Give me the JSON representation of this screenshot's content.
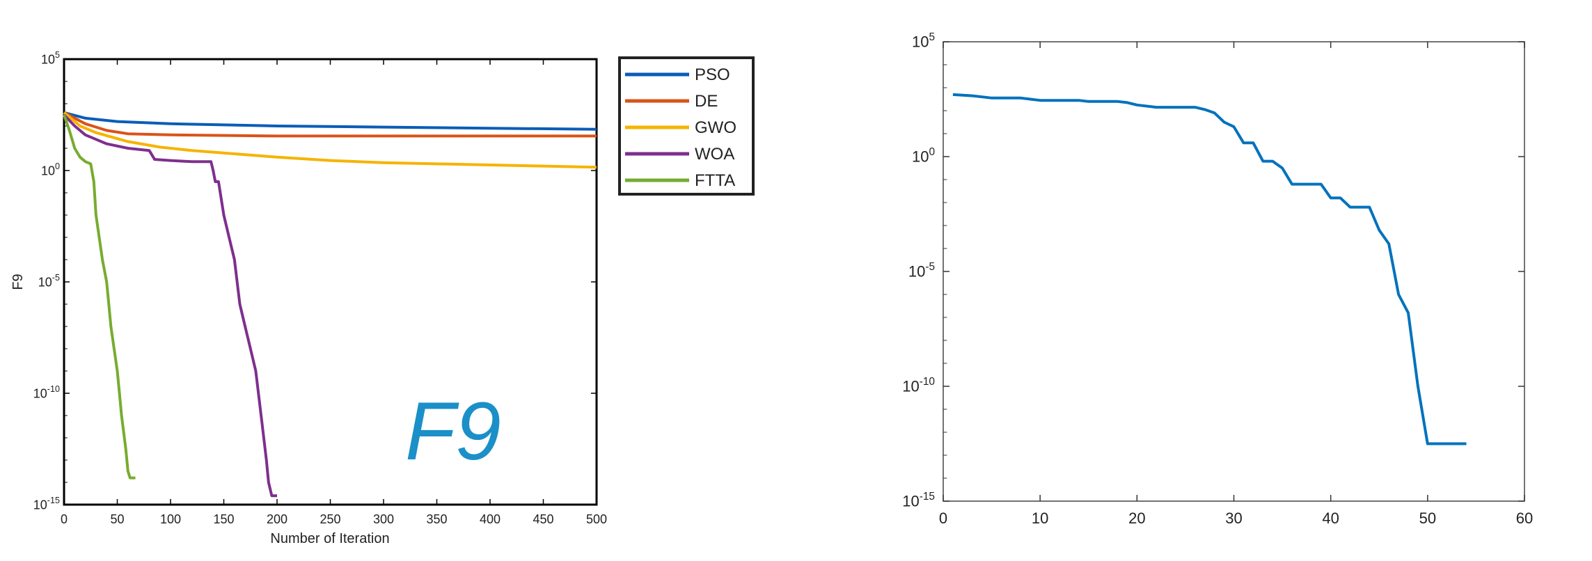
{
  "chart_data": [
    {
      "type": "line",
      "title": "",
      "annotation": "F9",
      "xlabel": "Number of Iteration",
      "ylabel": "F9",
      "xlim": [
        0,
        500
      ],
      "ylim_exp": [
        -15,
        5
      ],
      "yscale": "log",
      "xticks": [
        0,
        50,
        100,
        150,
        200,
        250,
        300,
        350,
        400,
        450,
        500
      ],
      "yticks": [
        {
          "base": "10",
          "exp": "-15"
        },
        {
          "base": "10",
          "exp": "-10"
        },
        {
          "base": "10",
          "exp": "-5"
        },
        {
          "base": "10",
          "exp": "0"
        },
        {
          "base": "10",
          "exp": "5"
        }
      ],
      "legend_position": "outside-right",
      "series": [
        {
          "name": "PSO",
          "color": "#0a5db8",
          "points": [
            [
              0,
              2.6
            ],
            [
              20,
              2.35
            ],
            [
              50,
              2.2
            ],
            [
              100,
              2.1
            ],
            [
              200,
              2.0
            ],
            [
              300,
              1.95
            ],
            [
              400,
              1.9
            ],
            [
              500,
              1.85
            ]
          ]
        },
        {
          "name": "DE",
          "color": "#d95319",
          "points": [
            [
              0,
              2.6
            ],
            [
              20,
              2.1
            ],
            [
              40,
              1.8
            ],
            [
              60,
              1.65
            ],
            [
              100,
              1.6
            ],
            [
              200,
              1.55
            ],
            [
              300,
              1.55
            ],
            [
              500,
              1.55
            ]
          ]
        },
        {
          "name": "GWO",
          "color": "#f5b400",
          "points": [
            [
              0,
              2.6
            ],
            [
              15,
              2.0
            ],
            [
              30,
              1.7
            ],
            [
              60,
              1.3
            ],
            [
              90,
              1.05
            ],
            [
              120,
              0.9
            ],
            [
              160,
              0.75
            ],
            [
              200,
              0.6
            ],
            [
              250,
              0.45
            ],
            [
              300,
              0.35
            ],
            [
              350,
              0.3
            ],
            [
              400,
              0.25
            ],
            [
              450,
              0.2
            ],
            [
              500,
              0.15
            ]
          ]
        },
        {
          "name": "WOA",
          "color": "#7e2f8e",
          "points": [
            [
              0,
              2.5
            ],
            [
              10,
              2.0
            ],
            [
              20,
              1.6
            ],
            [
              40,
              1.2
            ],
            [
              60,
              1.0
            ],
            [
              80,
              0.9
            ],
            [
              85,
              0.5
            ],
            [
              100,
              0.45
            ],
            [
              120,
              0.4
            ],
            [
              138,
              0.4
            ],
            [
              140,
              0.0
            ],
            [
              142,
              -0.5
            ],
            [
              145,
              -0.5
            ],
            [
              150,
              -2.0
            ],
            [
              155,
              -3.0
            ],
            [
              160,
              -4.0
            ],
            [
              165,
              -6.0
            ],
            [
              170,
              -7.0
            ],
            [
              175,
              -8.0
            ],
            [
              180,
              -9.0
            ],
            [
              185,
              -11.0
            ],
            [
              190,
              -13.0
            ],
            [
              192,
              -14.0
            ],
            [
              195,
              -14.6
            ],
            [
              200,
              -14.6
            ]
          ]
        },
        {
          "name": "FTTA",
          "color": "#77ac30",
          "points": [
            [
              0,
              2.5
            ],
            [
              5,
              1.8
            ],
            [
              10,
              1.0
            ],
            [
              15,
              0.6
            ],
            [
              20,
              0.4
            ],
            [
              25,
              0.3
            ],
            [
              28,
              -0.5
            ],
            [
              30,
              -2.0
            ],
            [
              33,
              -3.0
            ],
            [
              36,
              -4.0
            ],
            [
              40,
              -5.0
            ],
            [
              42,
              -6.0
            ],
            [
              44,
              -7.0
            ],
            [
              47,
              -8.0
            ],
            [
              50,
              -9.0
            ],
            [
              52,
              -10.0
            ],
            [
              54,
              -11.0
            ],
            [
              58,
              -12.5
            ],
            [
              60,
              -13.5
            ],
            [
              62,
              -13.8
            ],
            [
              67,
              -13.8
            ]
          ]
        }
      ]
    },
    {
      "type": "line",
      "title": "",
      "xlabel": "",
      "ylabel": "",
      "xlim": [
        0,
        60
      ],
      "ylim_exp": [
        -15,
        5
      ],
      "yscale": "log",
      "xticks": [
        0,
        10,
        20,
        30,
        40,
        50,
        60
      ],
      "yticks": [
        {
          "base": "10",
          "exp": "-15"
        },
        {
          "base": "10",
          "exp": "-10"
        },
        {
          "base": "10",
          "exp": "-5"
        },
        {
          "base": "10",
          "exp": "0"
        },
        {
          "base": "10",
          "exp": "5"
        }
      ],
      "series": [
        {
          "color": "#0072bd",
          "points": [
            [
              1,
              2.7
            ],
            [
              3,
              2.65
            ],
            [
              4,
              2.6
            ],
            [
              5,
              2.55
            ],
            [
              8,
              2.55
            ],
            [
              9,
              2.5
            ],
            [
              10,
              2.45
            ],
            [
              14,
              2.45
            ],
            [
              15,
              2.4
            ],
            [
              18,
              2.4
            ],
            [
              19,
              2.35
            ],
            [
              20,
              2.25
            ],
            [
              22,
              2.15
            ],
            [
              26,
              2.15
            ],
            [
              27,
              2.05
            ],
            [
              28,
              1.9
            ],
            [
              29,
              1.5
            ],
            [
              30,
              1.3
            ],
            [
              31,
              0.6
            ],
            [
              32,
              0.6
            ],
            [
              33,
              -0.2
            ],
            [
              34,
              -0.2
            ],
            [
              35,
              -0.5
            ],
            [
              36,
              -1.2
            ],
            [
              39,
              -1.2
            ],
            [
              40,
              -1.8
            ],
            [
              41,
              -1.8
            ],
            [
              42,
              -2.2
            ],
            [
              44,
              -2.2
            ],
            [
              45,
              -3.2
            ],
            [
              46,
              -3.8
            ],
            [
              47,
              -6.0
            ],
            [
              48,
              -6.8
            ],
            [
              49,
              -10.0
            ],
            [
              50,
              -12.5
            ],
            [
              54,
              -12.5
            ]
          ]
        }
      ]
    }
  ]
}
